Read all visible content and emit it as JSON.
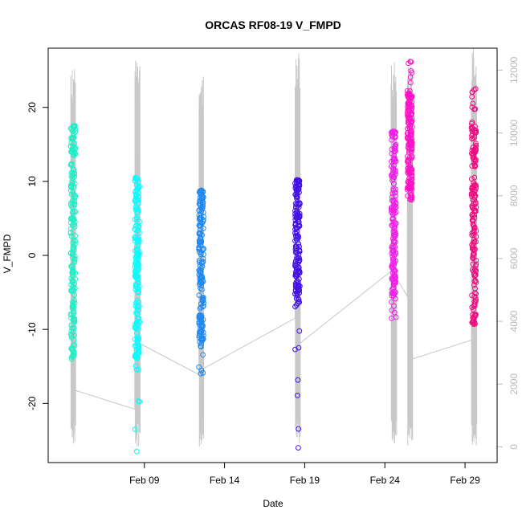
{
  "chart_data": {
    "type": "scatter",
    "title": "ORCAS RF08-19 V_FMPD",
    "xlabel": "Date",
    "ylabel": "V_FMPD",
    "xlim": [
      "2016-02-03",
      "2016-03-02"
    ],
    "ylim": [
      -28,
      28
    ],
    "y_ticks": [
      -20,
      -10,
      0,
      10,
      20
    ],
    "x_ticks": [
      {
        "date": "2016-02-09",
        "label": "Feb 09"
      },
      {
        "date": "2016-02-14",
        "label": "Feb 14"
      },
      {
        "date": "2016-02-19",
        "label": "Feb 19"
      },
      {
        "date": "2016-02-24",
        "label": "Feb 24"
      },
      {
        "date": "2016-02-29",
        "label": "Feb 29"
      }
    ],
    "secondary_axis": {
      "ylim": [
        -500,
        12700
      ],
      "ticks": [
        0,
        2000,
        4000,
        6000,
        8000,
        10000,
        12000
      ],
      "color": "#bebebe"
    },
    "grid": false,
    "legend": "none",
    "series": [
      {
        "date": "2016-02-04",
        "color": "#19f0c8",
        "ymin": -14,
        "ymax": 17.5,
        "dense_min": -13,
        "dense_max": 17
      },
      {
        "date": "2016-02-08",
        "color": "#00ffff",
        "ymin": -26.5,
        "ymax": 10.5,
        "dense_min": -14,
        "dense_max": 10
      },
      {
        "date": "2016-02-12",
        "color": "#1e88f0",
        "ymin": -16,
        "ymax": 8.8,
        "dense_min": -12,
        "dense_max": 8.5
      },
      {
        "date": "2016-02-18",
        "color": "#4411e8",
        "ymin": -26,
        "ymax": 10.2,
        "dense_min": -7,
        "dense_max": 10
      },
      {
        "date": "2016-02-24",
        "color": "#f020e8",
        "ymin": -8.5,
        "ymax": 16.8,
        "dense_min": -5.5,
        "dense_max": 16.5
      },
      {
        "date": "2016-02-25",
        "color": "#ff10c8",
        "ymin": 7.5,
        "ymax": 26.2,
        "dense_min": 8,
        "dense_max": 22
      },
      {
        "date": "2016-02-29",
        "color": "#f00a80",
        "ymin": -9.3,
        "ymax": 22.5,
        "dense_min": -9,
        "dense_max": 18
      }
    ],
    "altitude_line": {
      "color": "#c8c8c8",
      "flights": [
        {
          "date": "2016-02-04",
          "max": 12300,
          "end": 1800
        },
        {
          "date": "2016-02-08",
          "max": 12450,
          "start": 1200,
          "end": 3300
        },
        {
          "date": "2016-02-12",
          "max": 12200,
          "start": 2300,
          "end": 2500
        },
        {
          "date": "2016-02-18",
          "max": 12550,
          "start": 4100,
          "end": 3300
        },
        {
          "date": "2016-02-24",
          "max": 12300,
          "start": 5600,
          "end": 5400
        },
        {
          "date": "2016-02-25",
          "max": 12150,
          "start": 4800,
          "end": 2800
        },
        {
          "date": "2016-02-29",
          "max": 12800,
          "start": 3400,
          "end": 1100
        }
      ]
    }
  }
}
